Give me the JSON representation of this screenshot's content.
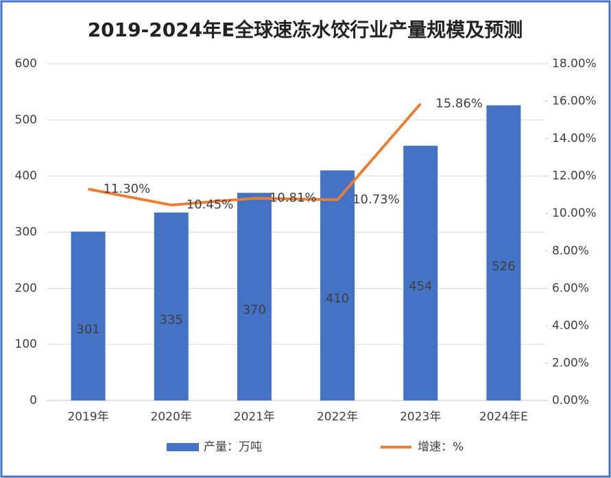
{
  "chart_data": {
    "type": "bar",
    "title": "2019-2024年E全球速冻水饺行业产量规模及预测",
    "categories": [
      "2019年",
      "2020年",
      "2021年",
      "2022年",
      "2023年",
      "2024年E"
    ],
    "series": [
      {
        "name": "产量：万吨",
        "type": "bar",
        "color": "#4472c4",
        "values": [
          301,
          335,
          370,
          410,
          454,
          526
        ]
      },
      {
        "name": "增速：%",
        "type": "line",
        "axis": "y2",
        "color": "#ed7d31",
        "values": [
          11.3,
          10.45,
          10.81,
          10.73,
          15.86,
          null
        ],
        "value_labels": [
          "11.30%",
          "10.45%",
          "10.81%",
          "10.73%",
          "15.86%",
          null
        ]
      }
    ],
    "ylim": [
      0,
      600
    ],
    "yticks": [
      0,
      100,
      200,
      300,
      400,
      500,
      600
    ],
    "y2lim": [
      0,
      18
    ],
    "y2ticks": [
      {
        "value": 0,
        "label": "0.00%"
      },
      {
        "value": 2,
        "label": "2.00%"
      },
      {
        "value": 4,
        "label": "4.00%"
      },
      {
        "value": 6,
        "label": "6.00%"
      },
      {
        "value": 8,
        "label": "8.00%"
      },
      {
        "value": 10,
        "label": "10.00%"
      },
      {
        "value": 12,
        "label": "12.00%"
      },
      {
        "value": 14,
        "label": "14.00%"
      },
      {
        "value": 16,
        "label": "16.00%"
      },
      {
        "value": 18,
        "label": "18.00%"
      }
    ],
    "grid": true,
    "legend": "bottom"
  }
}
